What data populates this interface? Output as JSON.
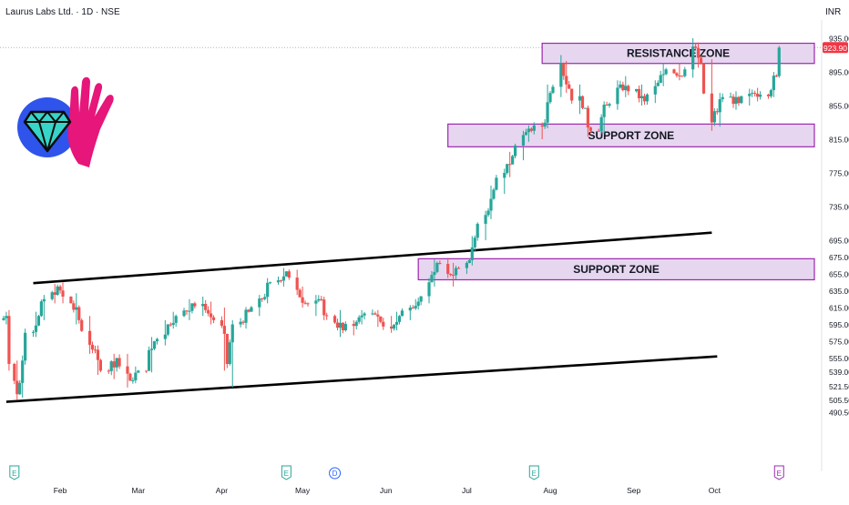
{
  "header": {
    "title": "Laurus Labs Ltd. · 1D · NSE",
    "currency": "INR"
  },
  "logo": {
    "description_icons": [
      "diamond-icon",
      "hand-icon"
    ]
  },
  "price_label": "923.90",
  "colors": {
    "up": "#26a69a",
    "down": "#ef5350",
    "zone_fill": "#e7d6ef",
    "zone_border": "#9c27b0",
    "channel": "#000000",
    "price_tag": "#f23645"
  },
  "events": [
    {
      "icon": "E",
      "type": "earnings",
      "color": "#26a69a",
      "date": "2024-01-15"
    },
    {
      "icon": "E",
      "type": "earnings",
      "color": "#26a69a",
      "date": "2024-04-25"
    },
    {
      "icon": "D",
      "type": "dividend",
      "color": "#2962ff",
      "date": "2024-05-13"
    },
    {
      "icon": "E",
      "type": "earnings",
      "color": "#26a69a",
      "date": "2024-07-26"
    },
    {
      "icon": "E",
      "type": "earnings-upcoming",
      "color": "#9c27b0",
      "date": "2024-10-25"
    }
  ],
  "chart_data": {
    "type": "candlestick",
    "title": "Laurus Labs Ltd. · 1D · NSE",
    "currency": "INR",
    "last_price": 923.9,
    "ylim": [
      488,
      940
    ],
    "y_ticks": [
      "935.00",
      "895.00",
      "855.00",
      "815.00",
      "775.00",
      "735.00",
      "695.00",
      "675.00",
      "655.00",
      "635.00",
      "615.00",
      "595.00",
      "575.00",
      "555.00",
      "539.00",
      "521.50",
      "505.50",
      "490.50"
    ],
    "y_tick_values": [
      935,
      895,
      855,
      815,
      775,
      735,
      695,
      675,
      655,
      635,
      615,
      595,
      575,
      555,
      539,
      521.5,
      505.5,
      490.5
    ],
    "x_ticks": [
      "Feb",
      "Mar",
      "Apr",
      "May",
      "Jun",
      "Jul",
      "Aug",
      "Sep",
      "Oct"
    ],
    "x_tick_dates": [
      "2024-02-01",
      "2024-03-01",
      "2024-04-01",
      "2024-05-01",
      "2024-06-01",
      "2024-07-01",
      "2024-08-01",
      "2024-09-01",
      "2024-10-01"
    ],
    "x_range": [
      "2024-01-11",
      "2024-10-31"
    ],
    "zones": [
      {
        "label": "RESISTANCE ZONE",
        "from": "2024-07-29",
        "to": "2024-10-31",
        "low": 905,
        "high": 929
      },
      {
        "label": "SUPPORT ZONE",
        "from": "2024-06-24",
        "to": "2024-10-31",
        "low": 806,
        "high": 833
      },
      {
        "label": "SUPPORT ZONE",
        "from": "2024-06-13",
        "to": "2024-10-31",
        "low": 648,
        "high": 673
      }
    ],
    "trendlines": [
      {
        "name": "upper channel",
        "from": [
          "2024-01-22",
          644
        ],
        "to": [
          "2024-09-30",
          704
        ]
      },
      {
        "name": "lower channel",
        "from": [
          "2024-01-12",
          503
        ],
        "to": [
          "2024-10-02",
          557
        ]
      }
    ],
    "ohlc_anchors": [
      [
        "2024-01-11",
        600,
        610,
        595,
        605
      ],
      [
        "2024-01-13",
        605,
        612,
        540,
        548
      ],
      [
        "2024-01-15",
        548,
        552,
        505,
        512
      ],
      [
        "2024-01-17",
        512,
        558,
        508,
        552
      ],
      [
        "2024-01-19",
        552,
        590,
        548,
        585
      ],
      [
        "2024-01-22",
        585,
        610,
        580,
        605
      ],
      [
        "2024-01-25",
        605,
        630,
        600,
        625
      ],
      [
        "2024-01-29",
        625,
        643,
        620,
        640
      ],
      [
        "2024-02-01",
        640,
        645,
        620,
        628
      ],
      [
        "2024-02-05",
        628,
        632,
        595,
        600
      ],
      [
        "2024-02-09",
        600,
        605,
        560,
        565
      ],
      [
        "2024-02-14",
        565,
        570,
        535,
        540
      ],
      [
        "2024-02-19",
        540,
        560,
        530,
        555
      ],
      [
        "2024-02-23",
        555,
        560,
        520,
        528
      ],
      [
        "2024-02-28",
        528,
        545,
        525,
        540
      ],
      [
        "2024-03-04",
        540,
        580,
        538,
        575
      ],
      [
        "2024-03-08",
        575,
        600,
        570,
        595
      ],
      [
        "2024-03-13",
        595,
        610,
        590,
        605
      ],
      [
        "2024-03-18",
        605,
        625,
        600,
        620
      ],
      [
        "2024-03-22",
        620,
        628,
        605,
        612
      ],
      [
        "2024-03-27",
        612,
        622,
        595,
        600
      ],
      [
        "2024-04-01",
        600,
        615,
        540,
        548
      ],
      [
        "2024-04-04",
        548,
        600,
        520,
        595
      ],
      [
        "2024-04-08",
        595,
        615,
        590,
        610
      ],
      [
        "2024-04-12",
        610,
        630,
        605,
        625
      ],
      [
        "2024-04-17",
        625,
        650,
        620,
        645
      ],
      [
        "2024-04-22",
        645,
        662,
        640,
        658
      ],
      [
        "2024-04-26",
        658,
        660,
        630,
        636
      ],
      [
        "2024-04-30",
        636,
        640,
        615,
        620
      ],
      [
        "2024-05-03",
        620,
        630,
        605,
        625
      ],
      [
        "2024-05-08",
        625,
        628,
        600,
        605
      ],
      [
        "2024-05-13",
        605,
        612,
        580,
        588
      ],
      [
        "2024-05-17",
        588,
        600,
        582,
        598
      ],
      [
        "2024-05-22",
        598,
        612,
        595,
        608
      ],
      [
        "2024-05-27",
        608,
        612,
        592,
        598
      ],
      [
        "2024-05-31",
        598,
        605,
        585,
        590
      ],
      [
        "2024-06-04",
        590,
        610,
        588,
        605
      ],
      [
        "2024-06-07",
        605,
        618,
        600,
        615
      ],
      [
        "2024-06-11",
        615,
        625,
        612,
        622
      ],
      [
        "2024-06-14",
        622,
        650,
        620,
        645
      ],
      [
        "2024-06-18",
        645,
        672,
        640,
        668
      ],
      [
        "2024-06-21",
        668,
        674,
        650,
        655
      ],
      [
        "2024-06-25",
        655,
        668,
        640,
        662
      ],
      [
        "2024-06-28",
        662,
        670,
        655,
        668
      ],
      [
        "2024-07-02",
        668,
        700,
        665,
        698
      ],
      [
        "2024-07-05",
        698,
        730,
        695,
        725
      ],
      [
        "2024-07-09",
        725,
        760,
        720,
        755
      ],
      [
        "2024-07-12",
        755,
        780,
        750,
        775
      ],
      [
        "2024-07-16",
        775,
        800,
        770,
        795
      ],
      [
        "2024-07-19",
        795,
        825,
        790,
        820
      ],
      [
        "2024-07-23",
        820,
        830,
        812,
        825
      ],
      [
        "2024-07-26",
        825,
        835,
        815,
        830
      ],
      [
        "2024-07-30",
        830,
        880,
        828,
        870
      ],
      [
        "2024-08-02",
        870,
        915,
        865,
        905
      ],
      [
        "2024-08-06",
        905,
        908,
        870,
        875
      ],
      [
        "2024-08-09",
        875,
        880,
        845,
        852
      ],
      [
        "2024-08-14",
        852,
        855,
        818,
        825
      ],
      [
        "2024-08-19",
        825,
        860,
        822,
        855
      ],
      [
        "2024-08-23",
        855,
        885,
        850,
        880
      ],
      [
        "2024-08-28",
        880,
        890,
        865,
        872
      ],
      [
        "2024-09-02",
        872,
        880,
        855,
        860
      ],
      [
        "2024-09-06",
        860,
        885,
        858,
        882
      ],
      [
        "2024-09-11",
        882,
        905,
        878,
        898
      ],
      [
        "2024-09-16",
        898,
        905,
        885,
        890
      ],
      [
        "2024-09-20",
        890,
        935,
        888,
        925
      ],
      [
        "2024-09-24",
        925,
        930,
        900,
        905
      ],
      [
        "2024-09-27",
        905,
        910,
        825,
        835
      ],
      [
        "2024-10-01",
        835,
        870,
        830,
        865
      ],
      [
        "2024-10-07",
        865,
        872,
        850,
        858
      ],
      [
        "2024-10-11",
        858,
        875,
        855,
        870
      ],
      [
        "2024-10-16",
        870,
        876,
        860,
        868
      ],
      [
        "2024-10-21",
        868,
        895,
        865,
        890
      ],
      [
        "2024-10-25",
        890,
        926,
        888,
        923.9
      ]
    ]
  }
}
